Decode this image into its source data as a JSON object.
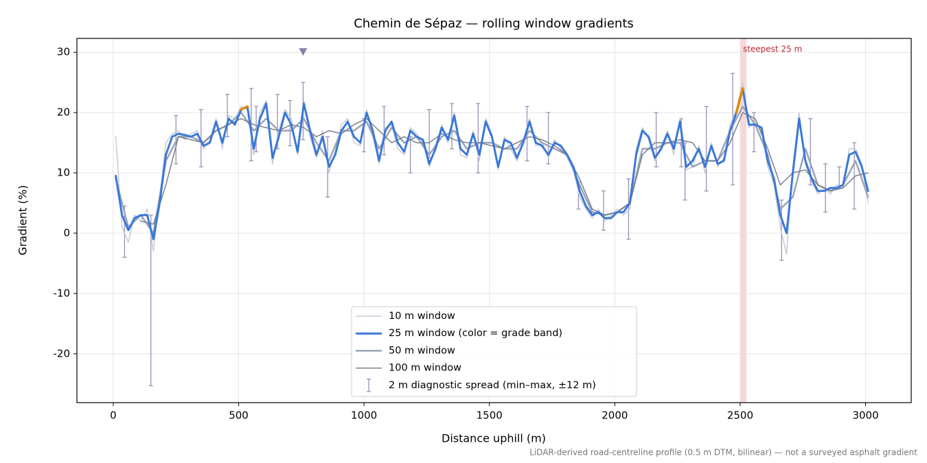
{
  "chart_data": {
    "type": "line",
    "title": "Chemin de Sépaz — rolling window gradients",
    "x_label": "Distance uphill (m)",
    "y_label": "Gradient (%)",
    "footnote": "LiDAR-derived road-centreline profile (0.5 m DTM, bilinear) — not a surveyed asphalt gradient",
    "xlim": [
      -145,
      3182
    ],
    "ylim": [
      -28.1,
      32.3
    ],
    "xticks": [
      0,
      500,
      1000,
      1500,
      2000,
      2500,
      3000
    ],
    "yticks": [
      -20,
      -10,
      0,
      10,
      20,
      30
    ],
    "grid": true,
    "legend": "lower center",
    "band_threshold": 20,
    "band_color": "#e08a00",
    "series": [
      {
        "name": "10 m window",
        "color": "#c5cbd8",
        "x": [
          10,
          35,
          60,
          85,
          110,
          135,
          160,
          185,
          210,
          235,
          260,
          285,
          310,
          335,
          360,
          385,
          410,
          435,
          460,
          485,
          510,
          535,
          560,
          585,
          610,
          635,
          660,
          685,
          710,
          735,
          760,
          785,
          810,
          835,
          860,
          885,
          910,
          935,
          960,
          985,
          1010,
          1035,
          1060,
          1085,
          1110,
          1135,
          1160,
          1185,
          1210,
          1235,
          1260,
          1285,
          1310,
          1335,
          1360,
          1385,
          1410,
          1435,
          1460,
          1485,
          1510,
          1535,
          1560,
          1585,
          1610,
          1635,
          1660,
          1685,
          1710,
          1735,
          1760,
          1785,
          1810,
          1835,
          1860,
          1885,
          1910,
          1935,
          1960,
          1985,
          2010,
          2035,
          2060,
          2085,
          2110,
          2135,
          2160,
          2185,
          2210,
          2235,
          2260,
          2285,
          2310,
          2335,
          2360,
          2385,
          2410,
          2435,
          2460,
          2485,
          2510,
          2535,
          2560,
          2585,
          2610,
          2635,
          2660,
          2685,
          2710,
          2735,
          2760,
          2785,
          2810,
          2835,
          2860,
          2885,
          2910,
          2935,
          2960,
          2985,
          3010
        ],
        "values": [
          16,
          1,
          -1.5,
          3,
          2,
          4,
          -3,
          6,
          15,
          16.5,
          17,
          15.5,
          16.5,
          17,
          14,
          15.5,
          19,
          14,
          19.5,
          19,
          21,
          20.5,
          13,
          20,
          22,
          11.5,
          17,
          20.5,
          19,
          13,
          22,
          16,
          12.5,
          17,
          10,
          13.5,
          18,
          19,
          15,
          14.5,
          20.5,
          16,
          11.5,
          17.5,
          18,
          14,
          13,
          17.5,
          16.5,
          15,
          11,
          14.5,
          18,
          15,
          20,
          13,
          12.5,
          17,
          12,
          19,
          16.5,
          10.5,
          16,
          14,
          12,
          15.5,
          19,
          14.5,
          15,
          12.5,
          15.5,
          14,
          12.5,
          10.5,
          6,
          4,
          2.5,
          4,
          2,
          3,
          4,
          3,
          4,
          14,
          17.5,
          15.5,
          12,
          14.5,
          17,
          13,
          19,
          10.5,
          11,
          14.5,
          10,
          15,
          11,
          12.5,
          18,
          20.5,
          25,
          17.5,
          18.5,
          17,
          11,
          8,
          1,
          -3.5,
          11,
          20,
          11.5,
          8.5,
          6.5,
          7.5,
          6.5,
          8,
          7.5,
          14,
          14,
          11.5,
          5
        ]
      },
      {
        "name": "25 m window (color = grade band)",
        "color": "#3a78d8",
        "x": [
          10,
          35,
          60,
          85,
          110,
          135,
          160,
          185,
          210,
          235,
          260,
          285,
          310,
          335,
          360,
          385,
          410,
          435,
          460,
          485,
          510,
          535,
          560,
          585,
          610,
          635,
          660,
          685,
          710,
          735,
          760,
          785,
          810,
          835,
          860,
          885,
          910,
          935,
          960,
          985,
          1010,
          1035,
          1060,
          1085,
          1110,
          1135,
          1160,
          1185,
          1210,
          1235,
          1260,
          1285,
          1310,
          1335,
          1360,
          1385,
          1410,
          1435,
          1460,
          1485,
          1510,
          1535,
          1560,
          1585,
          1610,
          1635,
          1660,
          1685,
          1710,
          1735,
          1760,
          1785,
          1810,
          1835,
          1860,
          1885,
          1910,
          1935,
          1960,
          1985,
          2010,
          2035,
          2060,
          2085,
          2110,
          2135,
          2160,
          2185,
          2210,
          2235,
          2260,
          2285,
          2310,
          2335,
          2360,
          2385,
          2410,
          2435,
          2460,
          2485,
          2510,
          2535,
          2560,
          2585,
          2610,
          2635,
          2660,
          2685,
          2710,
          2735,
          2760,
          2785,
          2810,
          2835,
          2860,
          2885,
          2910,
          2935,
          2960,
          2985,
          3010
        ],
        "values": [
          9.5,
          3,
          0.5,
          2.5,
          3,
          3,
          -1,
          5,
          13,
          16,
          16.5,
          16.3,
          16,
          16.5,
          14.5,
          15,
          18.5,
          15,
          19,
          18,
          20.5,
          21,
          14,
          19,
          21.5,
          12.5,
          16,
          20,
          18,
          13.5,
          21.5,
          17,
          13,
          16,
          11,
          13,
          17,
          18.5,
          16,
          15,
          20,
          17,
          12,
          17,
          18.5,
          15,
          13.5,
          17,
          16,
          15.5,
          11.5,
          14,
          17.5,
          15.5,
          19.5,
          14,
          13,
          16.5,
          13,
          18.5,
          16,
          11,
          15.5,
          15,
          12.5,
          15,
          18.5,
          15,
          14.5,
          13,
          15,
          14.5,
          13,
          11,
          7,
          4.5,
          3,
          3.5,
          2.5,
          2.5,
          3.5,
          3.5,
          5,
          13,
          17,
          16,
          12.5,
          14,
          16.5,
          14,
          18.5,
          11,
          12,
          14,
          11,
          14.5,
          11.5,
          12,
          17,
          20,
          24,
          18,
          18,
          17.5,
          12,
          9,
          3,
          0,
          10,
          19,
          12,
          9,
          7,
          7,
          7.5,
          7.5,
          8,
          13,
          13.5,
          11,
          7
        ]
      },
      {
        "name": "50 m window",
        "color": "#9aa3b8",
        "x": [
          10,
          60,
          110,
          160,
          210,
          260,
          310,
          360,
          410,
          460,
          510,
          560,
          610,
          660,
          710,
          760,
          810,
          860,
          910,
          960,
          1010,
          1060,
          1110,
          1160,
          1210,
          1260,
          1310,
          1360,
          1410,
          1460,
          1510,
          1560,
          1610,
          1660,
          1710,
          1760,
          1810,
          1860,
          1910,
          1960,
          2010,
          2060,
          2110,
          2160,
          2210,
          2260,
          2310,
          2360,
          2410,
          2460,
          2510,
          2560,
          2610,
          2660,
          2710,
          2760,
          2810,
          2860,
          2910,
          2960,
          3010
        ],
        "values": [
          9,
          1,
          3,
          0,
          12,
          16,
          16,
          15,
          17,
          18,
          20,
          17,
          19,
          17,
          17,
          19,
          15,
          12,
          17,
          17,
          18.5,
          14,
          17.5,
          15,
          16,
          13,
          16,
          17,
          14,
          15,
          15,
          14,
          14,
          17,
          15,
          14,
          13,
          8,
          3.5,
          3,
          3.5,
          5,
          14,
          14,
          15,
          15,
          11,
          12,
          12,
          17,
          21,
          18,
          13,
          4,
          6,
          14,
          8,
          7,
          8,
          12,
          6
        ]
      },
      {
        "name": "100 m window",
        "color": "#7a7f8c",
        "x": [
          110,
          160,
          210,
          260,
          310,
          360,
          410,
          460,
          510,
          560,
          610,
          660,
          710,
          760,
          810,
          860,
          910,
          960,
          1010,
          1060,
          1110,
          1160,
          1210,
          1260,
          1310,
          1360,
          1410,
          1460,
          1510,
          1560,
          1610,
          1660,
          1710,
          1760,
          1810,
          1860,
          1910,
          1960,
          2010,
          2060,
          2110,
          2160,
          2210,
          2260,
          2310,
          2360,
          2410,
          2460,
          2510,
          2560,
          2610,
          2660,
          2710,
          2760,
          2810,
          2860,
          2910,
          2960,
          3010
        ],
        "values": [
          2,
          1.5,
          8,
          16,
          15.5,
          15,
          17,
          18,
          19,
          18,
          17.5,
          17,
          18,
          17.5,
          16,
          17,
          16.5,
          18,
          19,
          17,
          15,
          16,
          15,
          15,
          16.5,
          15.5,
          15,
          15,
          14.5,
          14,
          15,
          16,
          15.5,
          14.5,
          13,
          9,
          4,
          3,
          3.5,
          5,
          13,
          15,
          15,
          15.5,
          15,
          12,
          12,
          15,
          20,
          19,
          14,
          8,
          10,
          10.5,
          8,
          7,
          7.5,
          9.5,
          10
        ]
      }
    ],
    "errorbars": {
      "name": "2 m diagnostic spread (min–max, ±12 m)",
      "color": "#9a8fb5",
      "x": [
        45,
        150,
        250,
        350,
        455,
        550,
        570,
        655,
        705,
        757,
        855,
        1000,
        1080,
        1185,
        1260,
        1350,
        1455,
        1650,
        1735,
        1855,
        1955,
        2055,
        2165,
        2265,
        2280,
        2365,
        2470,
        2555,
        2665,
        2780,
        2840,
        2895,
        2955
      ],
      "low": [
        -4,
        -25.3,
        11.5,
        11,
        16,
        12,
        13.5,
        14,
        14.5,
        15.5,
        6,
        13.5,
        13,
        10,
        12.5,
        14,
        10,
        12,
        11.5,
        4,
        0.5,
        -1,
        11,
        11,
        5.5,
        7,
        8,
        13.5,
        -4.5,
        8,
        3.5,
        7.5,
        4
      ],
      "high": [
        4.5,
        3,
        19.5,
        20.5,
        23,
        24,
        21,
        23,
        22,
        25,
        16,
        19,
        21,
        16,
        20.5,
        21.5,
        21.5,
        21,
        20,
        8.5,
        7,
        9,
        20,
        19,
        15,
        21,
        26.5,
        20,
        5.5,
        19,
        11.5,
        11,
        15
      ]
    },
    "marker": {
      "x": 757,
      "y": 30,
      "color": "#8a7fa8"
    },
    "highlight_span": {
      "label": "steepest 25 m",
      "x": [
        2500,
        2525
      ],
      "color": "#f4c7c9",
      "label_color": "#c0282e"
    }
  }
}
